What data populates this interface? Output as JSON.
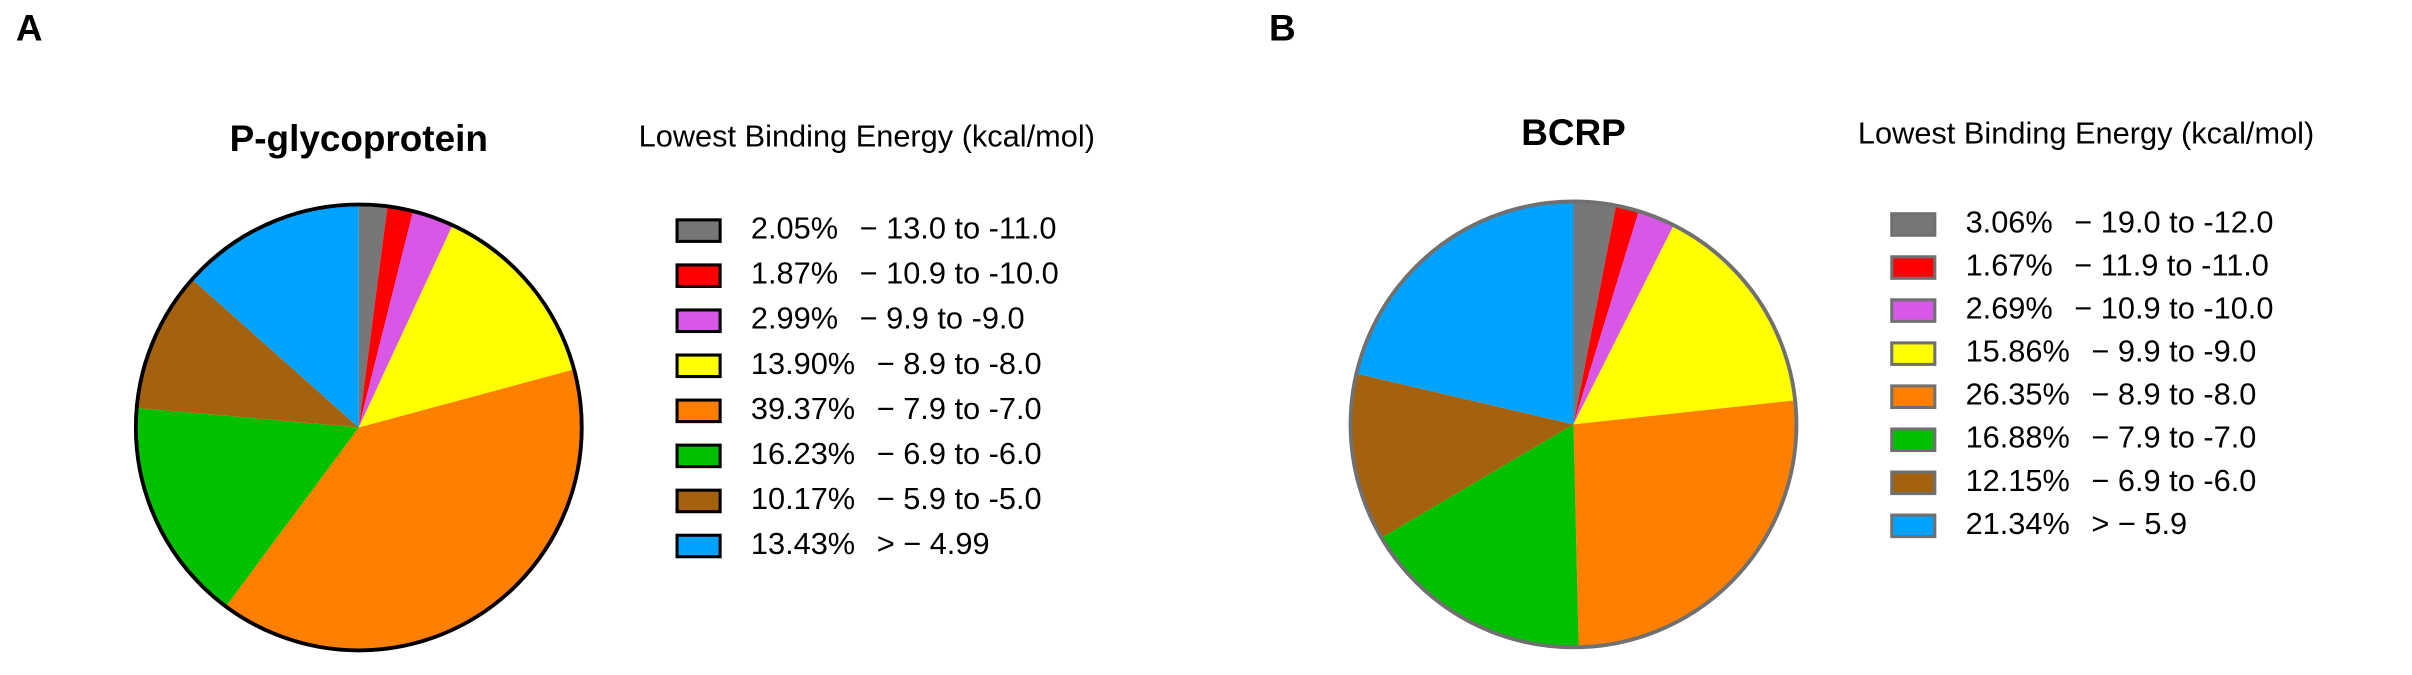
{
  "chart_data": [
    {
      "type": "pie",
      "panel": "A",
      "title": "P-glycoprotein",
      "legend_title": "Lowest Binding Energy (kcal/mol)",
      "categories": [
        "− 13.0 to -11.0",
        "− 10.9 to -10.0",
        "− 9.9 to -9.0",
        "− 8.9 to -8.0",
        "− 7.9 to -7.0",
        "− 6.9 to -6.0",
        "− 5.9 to -5.0",
        "> − 4.99"
      ],
      "values": [
        2.05,
        1.87,
        2.99,
        13.9,
        39.37,
        16.23,
        10.17,
        13.43
      ],
      "value_labels": [
        "2.05%",
        "1.87%",
        "2.99%",
        "13.90%",
        "39.37%",
        "16.23%",
        "10.17%",
        "13.43%"
      ],
      "colors": [
        "#777777",
        "#ff0000",
        "#d957e6",
        "#ffff00",
        "#ff8000",
        "#00c000",
        "#a5620e",
        "#00a2ff"
      ],
      "edge_color": "#000000"
    },
    {
      "type": "pie",
      "panel": "B",
      "title": "BCRP",
      "legend_title": "Lowest Binding Energy (kcal/mol)",
      "categories": [
        "− 19.0 to -12.0",
        "− 11.9 to -11.0",
        "− 10.9 to -10.0",
        "− 9.9 to -9.0",
        "− 8.9 to -8.0",
        "− 7.9 to -7.0",
        "− 6.9 to -6.0",
        "> − 5.9"
      ],
      "values": [
        3.06,
        1.67,
        2.69,
        15.86,
        26.35,
        16.88,
        12.15,
        21.34
      ],
      "value_labels": [
        "3.06%",
        "1.67%",
        "2.69%",
        "15.86%",
        "26.35%",
        "16.88%",
        "12.15%",
        "21.34%"
      ],
      "colors": [
        "#777777",
        "#ff0000",
        "#d957e6",
        "#ffff00",
        "#ff8000",
        "#00c000",
        "#a5620e",
        "#00a2ff"
      ],
      "edge_color": "#707070"
    }
  ]
}
